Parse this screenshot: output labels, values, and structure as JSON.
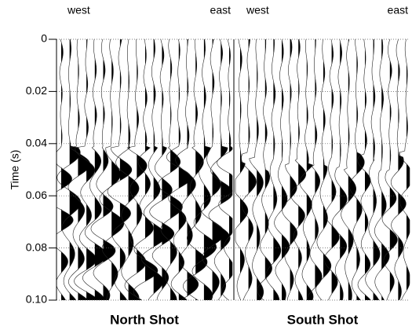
{
  "chart_data": {
    "type": "wiggle",
    "y_label": "Time (s)",
    "ylim": [
      0,
      0.1
    ],
    "yticks": [
      0,
      0.02,
      0.04,
      0.06,
      0.08,
      {
        "value": 0.1,
        "label": "0.10"
      }
    ],
    "grid": true,
    "panels": [
      {
        "title": "North Shot",
        "left_label": "west",
        "right_label": "east"
      },
      {
        "title": "South Shot",
        "left_label": "west",
        "right_label": "east"
      }
    ]
  }
}
